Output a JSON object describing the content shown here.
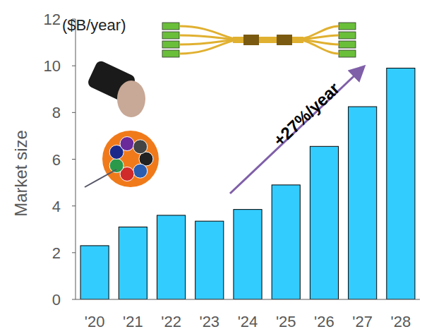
{
  "chart_data": {
    "type": "bar",
    "unit_label": "($B/year)",
    "y_label": "Market size",
    "categories": [
      "'20",
      "'21",
      "'22",
      "'23",
      "'24",
      "'25",
      "'26",
      "'27",
      "'28"
    ],
    "values": [
      2.3,
      3.1,
      3.6,
      3.35,
      3.85,
      4.9,
      6.55,
      8.25,
      9.9
    ],
    "color": "#33ccff",
    "ylim": [
      0,
      12
    ],
    "yticks": [
      0,
      2,
      4,
      6,
      8,
      10,
      12
    ],
    "grid": false,
    "annotations": [
      {
        "text": "+27%/year"
      }
    ]
  }
}
